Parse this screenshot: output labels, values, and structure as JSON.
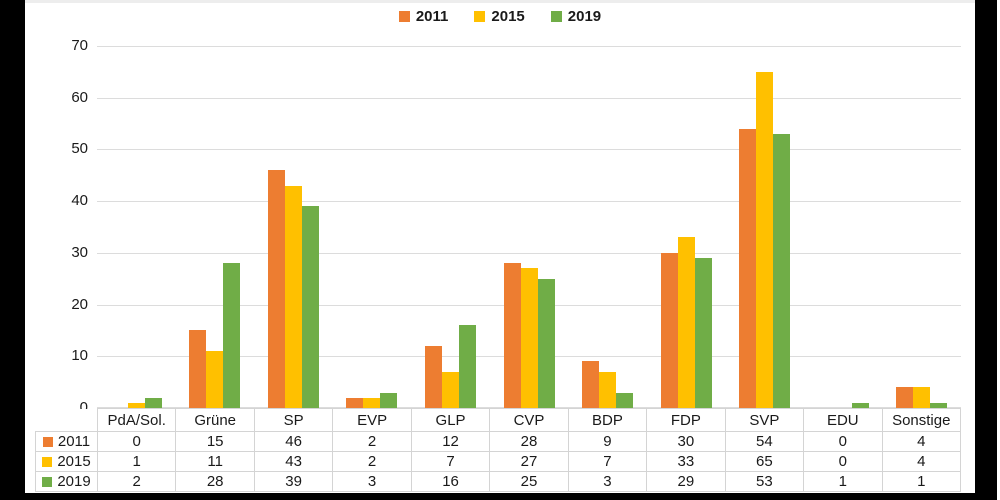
{
  "chart_data": {
    "type": "bar",
    "title": "",
    "xlabel": "",
    "ylabel": "",
    "categories": [
      "PdA/Sol.",
      "Grüne",
      "SP",
      "EVP",
      "GLP",
      "CVP",
      "BDP",
      "FDP",
      "SVP",
      "EDU",
      "Sonstige"
    ],
    "series": [
      {
        "name": "2011",
        "color": "#ED7D31",
        "values": [
          0,
          15,
          46,
          2,
          12,
          28,
          9,
          30,
          54,
          0,
          4
        ]
      },
      {
        "name": "2015",
        "color": "#FFC000",
        "values": [
          1,
          11,
          43,
          2,
          7,
          27,
          7,
          33,
          65,
          0,
          4
        ]
      },
      {
        "name": "2019",
        "color": "#70AD47",
        "values": [
          2,
          28,
          39,
          3,
          16,
          25,
          3,
          29,
          53,
          1,
          1
        ]
      }
    ],
    "ylim": [
      0,
      70
    ],
    "ytick_step": 10,
    "ytick_labels": [
      "0",
      "10",
      "20",
      "30",
      "40",
      "50",
      "60",
      "70"
    ],
    "grid": true,
    "legend_position": "top-center",
    "show_data_table": true
  },
  "colors": {
    "background": "#000000",
    "chart_background": "#ffffff",
    "gridline": "#dcdcdc",
    "table_border": "#d4d4d4",
    "text": "#1a1a1a"
  }
}
